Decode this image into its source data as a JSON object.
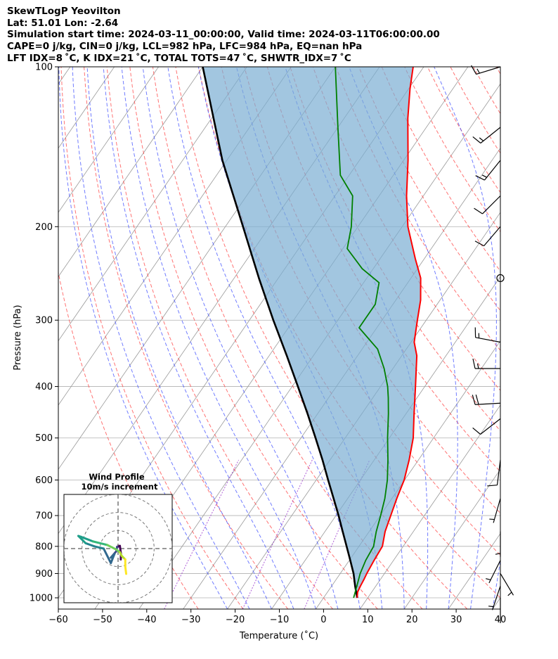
{
  "header": {
    "line1": "SkewTLogP Yeovilton",
    "line2": "Lat: 51.01   Lon: -2.64",
    "line3": "Simulation start time: 2024-03-11_00:00:00, Valid time: 2024-03-11T06:00:00.00",
    "line4": "CAPE=0 j/kg, CIN=0 j/kg, LCL=982 hPa, LFC=984 hPa, EQ=nan hPa",
    "line5": "LFT IDX=8 ˚C, K IDX=21 ˚C, TOTAL TOTS=47 ˚C, SHWTR_IDX=7 ˚C"
  },
  "chart_data": {
    "type": "line",
    "subtype": "skew-t log-p",
    "xlabel": "Temperature (˚C)",
    "ylabel": "Pressure (hPa)",
    "xlim": [
      -60,
      40
    ],
    "ylim": [
      1050,
      100
    ],
    "y_scale": "log",
    "x_ticks": [
      -60,
      -50,
      -40,
      -30,
      -20,
      -10,
      0,
      10,
      20,
      30,
      40
    ],
    "x_tick_labels": [
      "−60",
      "−50",
      "−40",
      "−30",
      "−20",
      "−10",
      "0",
      "10",
      "20",
      "30",
      "40"
    ],
    "y_ticks": [
      100,
      200,
      300,
      400,
      500,
      600,
      700,
      800,
      900,
      1000
    ],
    "y_tick_labels": [
      "100",
      "200",
      "300",
      "400",
      "500",
      "600",
      "700",
      "800",
      "900",
      "1000"
    ],
    "grid": true,
    "colors": {
      "temperature": "#ff0000",
      "dewpoint": "#008000",
      "parcel": "#000000",
      "shade": "#7aaed3",
      "dry_adiabat": "#ff4444",
      "moist_adiabat": "#3344ff",
      "mixing_ratio": "#9933cc",
      "skew_isotherm": "#999999"
    },
    "series": [
      {
        "role": "temperature",
        "points": [
          [
            1000,
            7.6
          ],
          [
            975,
            6.8
          ],
          [
            950,
            6.5
          ],
          [
            925,
            6.3
          ],
          [
            900,
            6.0
          ],
          [
            850,
            5.6
          ],
          [
            800,
            5.3
          ],
          [
            750,
            3.6
          ],
          [
            700,
            2.4
          ],
          [
            650,
            1.1
          ],
          [
            600,
            -0.1
          ],
          [
            550,
            -2.1
          ],
          [
            500,
            -4.6
          ],
          [
            450,
            -8.2
          ],
          [
            400,
            -12.1
          ],
          [
            350,
            -16.6
          ],
          [
            330,
            -19.3
          ],
          [
            300,
            -22.0
          ],
          [
            275,
            -24.4
          ],
          [
            250,
            -27.8
          ],
          [
            230,
            -32.0
          ],
          [
            200,
            -38.7
          ],
          [
            175,
            -43.8
          ],
          [
            150,
            -49.0
          ],
          [
            125,
            -55.6
          ],
          [
            110,
            -59.7
          ],
          [
            100,
            -62.4
          ]
        ]
      },
      {
        "role": "dewpoint",
        "points": [
          [
            1000,
            6.8
          ],
          [
            950,
            5.7
          ],
          [
            900,
            4.5
          ],
          [
            850,
            3.7
          ],
          [
            800,
            3.3
          ],
          [
            750,
            1.6
          ],
          [
            700,
            0.1
          ],
          [
            650,
            -1.6
          ],
          [
            600,
            -3.9
          ],
          [
            550,
            -6.9
          ],
          [
            500,
            -10.4
          ],
          [
            450,
            -14.0
          ],
          [
            420,
            -16.5
          ],
          [
            400,
            -18.4
          ],
          [
            370,
            -22.0
          ],
          [
            340,
            -26.5
          ],
          [
            310,
            -34.0
          ],
          [
            280,
            -34.0
          ],
          [
            255,
            -36.5
          ],
          [
            240,
            -42.5
          ],
          [
            220,
            -49.0
          ],
          [
            200,
            -51.5
          ],
          [
            175,
            -56.0
          ],
          [
            160,
            -62.0
          ],
          [
            130,
            -70.0
          ],
          [
            100,
            -80.0
          ]
        ]
      },
      {
        "role": "parcel",
        "points": [
          [
            1000,
            7.6
          ],
          [
            950,
            5.3
          ],
          [
            900,
            3.0
          ],
          [
            850,
            0.2
          ],
          [
            800,
            -2.8
          ],
          [
            750,
            -6.0
          ],
          [
            700,
            -9.4
          ],
          [
            650,
            -13.2
          ],
          [
            600,
            -17.3
          ],
          [
            550,
            -21.7
          ],
          [
            500,
            -26.7
          ],
          [
            450,
            -32.3
          ],
          [
            400,
            -38.7
          ],
          [
            350,
            -46.0
          ],
          [
            300,
            -54.6
          ],
          [
            250,
            -64.4
          ],
          [
            200,
            -76.0
          ],
          [
            150,
            -91.0
          ],
          [
            100,
            -110.0
          ]
        ]
      }
    ],
    "wind_barbs": [
      {
        "p": 100,
        "u": -13,
        "v": -4
      },
      {
        "p": 130,
        "u": -10,
        "v": -8
      },
      {
        "p": 150,
        "u": -8,
        "v": -10
      },
      {
        "p": 175,
        "u": -7,
        "v": -7
      },
      {
        "p": 200,
        "u": -6,
        "v": -7
      },
      {
        "p": 250,
        "calm": true
      },
      {
        "p": 330,
        "u": -16,
        "v": 3
      },
      {
        "p": 370,
        "u": -17,
        "v": 0
      },
      {
        "p": 430,
        "u": -18,
        "v": -1
      },
      {
        "p": 460,
        "u": -9,
        "v": -7
      },
      {
        "p": 550,
        "u": -1,
        "v": -8
      },
      {
        "p": 650,
        "u": -2,
        "v": -7
      },
      {
        "p": 750,
        "u": 0,
        "v": -6
      },
      {
        "p": 850,
        "u": -2,
        "v": -4
      },
      {
        "p": 900,
        "u": 3,
        "v": -5
      },
      {
        "p": 950,
        "u": -1,
        "v": -3
      },
      {
        "p": 1000,
        "u": 0,
        "v": -1
      }
    ],
    "inset": {
      "title_line1": "Wind Profile",
      "title_line2": "10m/s increment",
      "rings": [
        10,
        20,
        30
      ],
      "hodograph": [
        [
          1.5,
          -6
        ],
        [
          1.6,
          -3
        ],
        [
          1.0,
          1.5
        ],
        [
          -0.5,
          1.0
        ],
        [
          -1.0,
          -1.5
        ],
        [
          -4.0,
          -5.0
        ],
        [
          -2.0,
          -3.0
        ],
        [
          -4.0,
          -8.0
        ],
        [
          -8.0,
          0.0
        ],
        [
          -13.0,
          1.2
        ],
        [
          -18.0,
          3.0
        ],
        [
          -22.0,
          7.0
        ],
        [
          -20.5,
          6.5
        ],
        [
          -14.0,
          4.0
        ],
        [
          -10.0,
          3.0
        ],
        [
          -6.0,
          2.0
        ],
        [
          -3.0,
          0.5
        ],
        [
          -1.0,
          -0.5
        ],
        [
          1.0,
          -2.0
        ],
        [
          2.0,
          -4.0
        ],
        [
          4.0,
          -6.0
        ],
        [
          4.0,
          -10.0
        ],
        [
          4.5,
          -14.0
        ]
      ],
      "hodograph_colors": [
        "#440154",
        "#3e4a89",
        "#31688e",
        "#26828e",
        "#1f9e89",
        "#35b779",
        "#6ece58",
        "#b5de2b",
        "#fde725"
      ]
    }
  }
}
